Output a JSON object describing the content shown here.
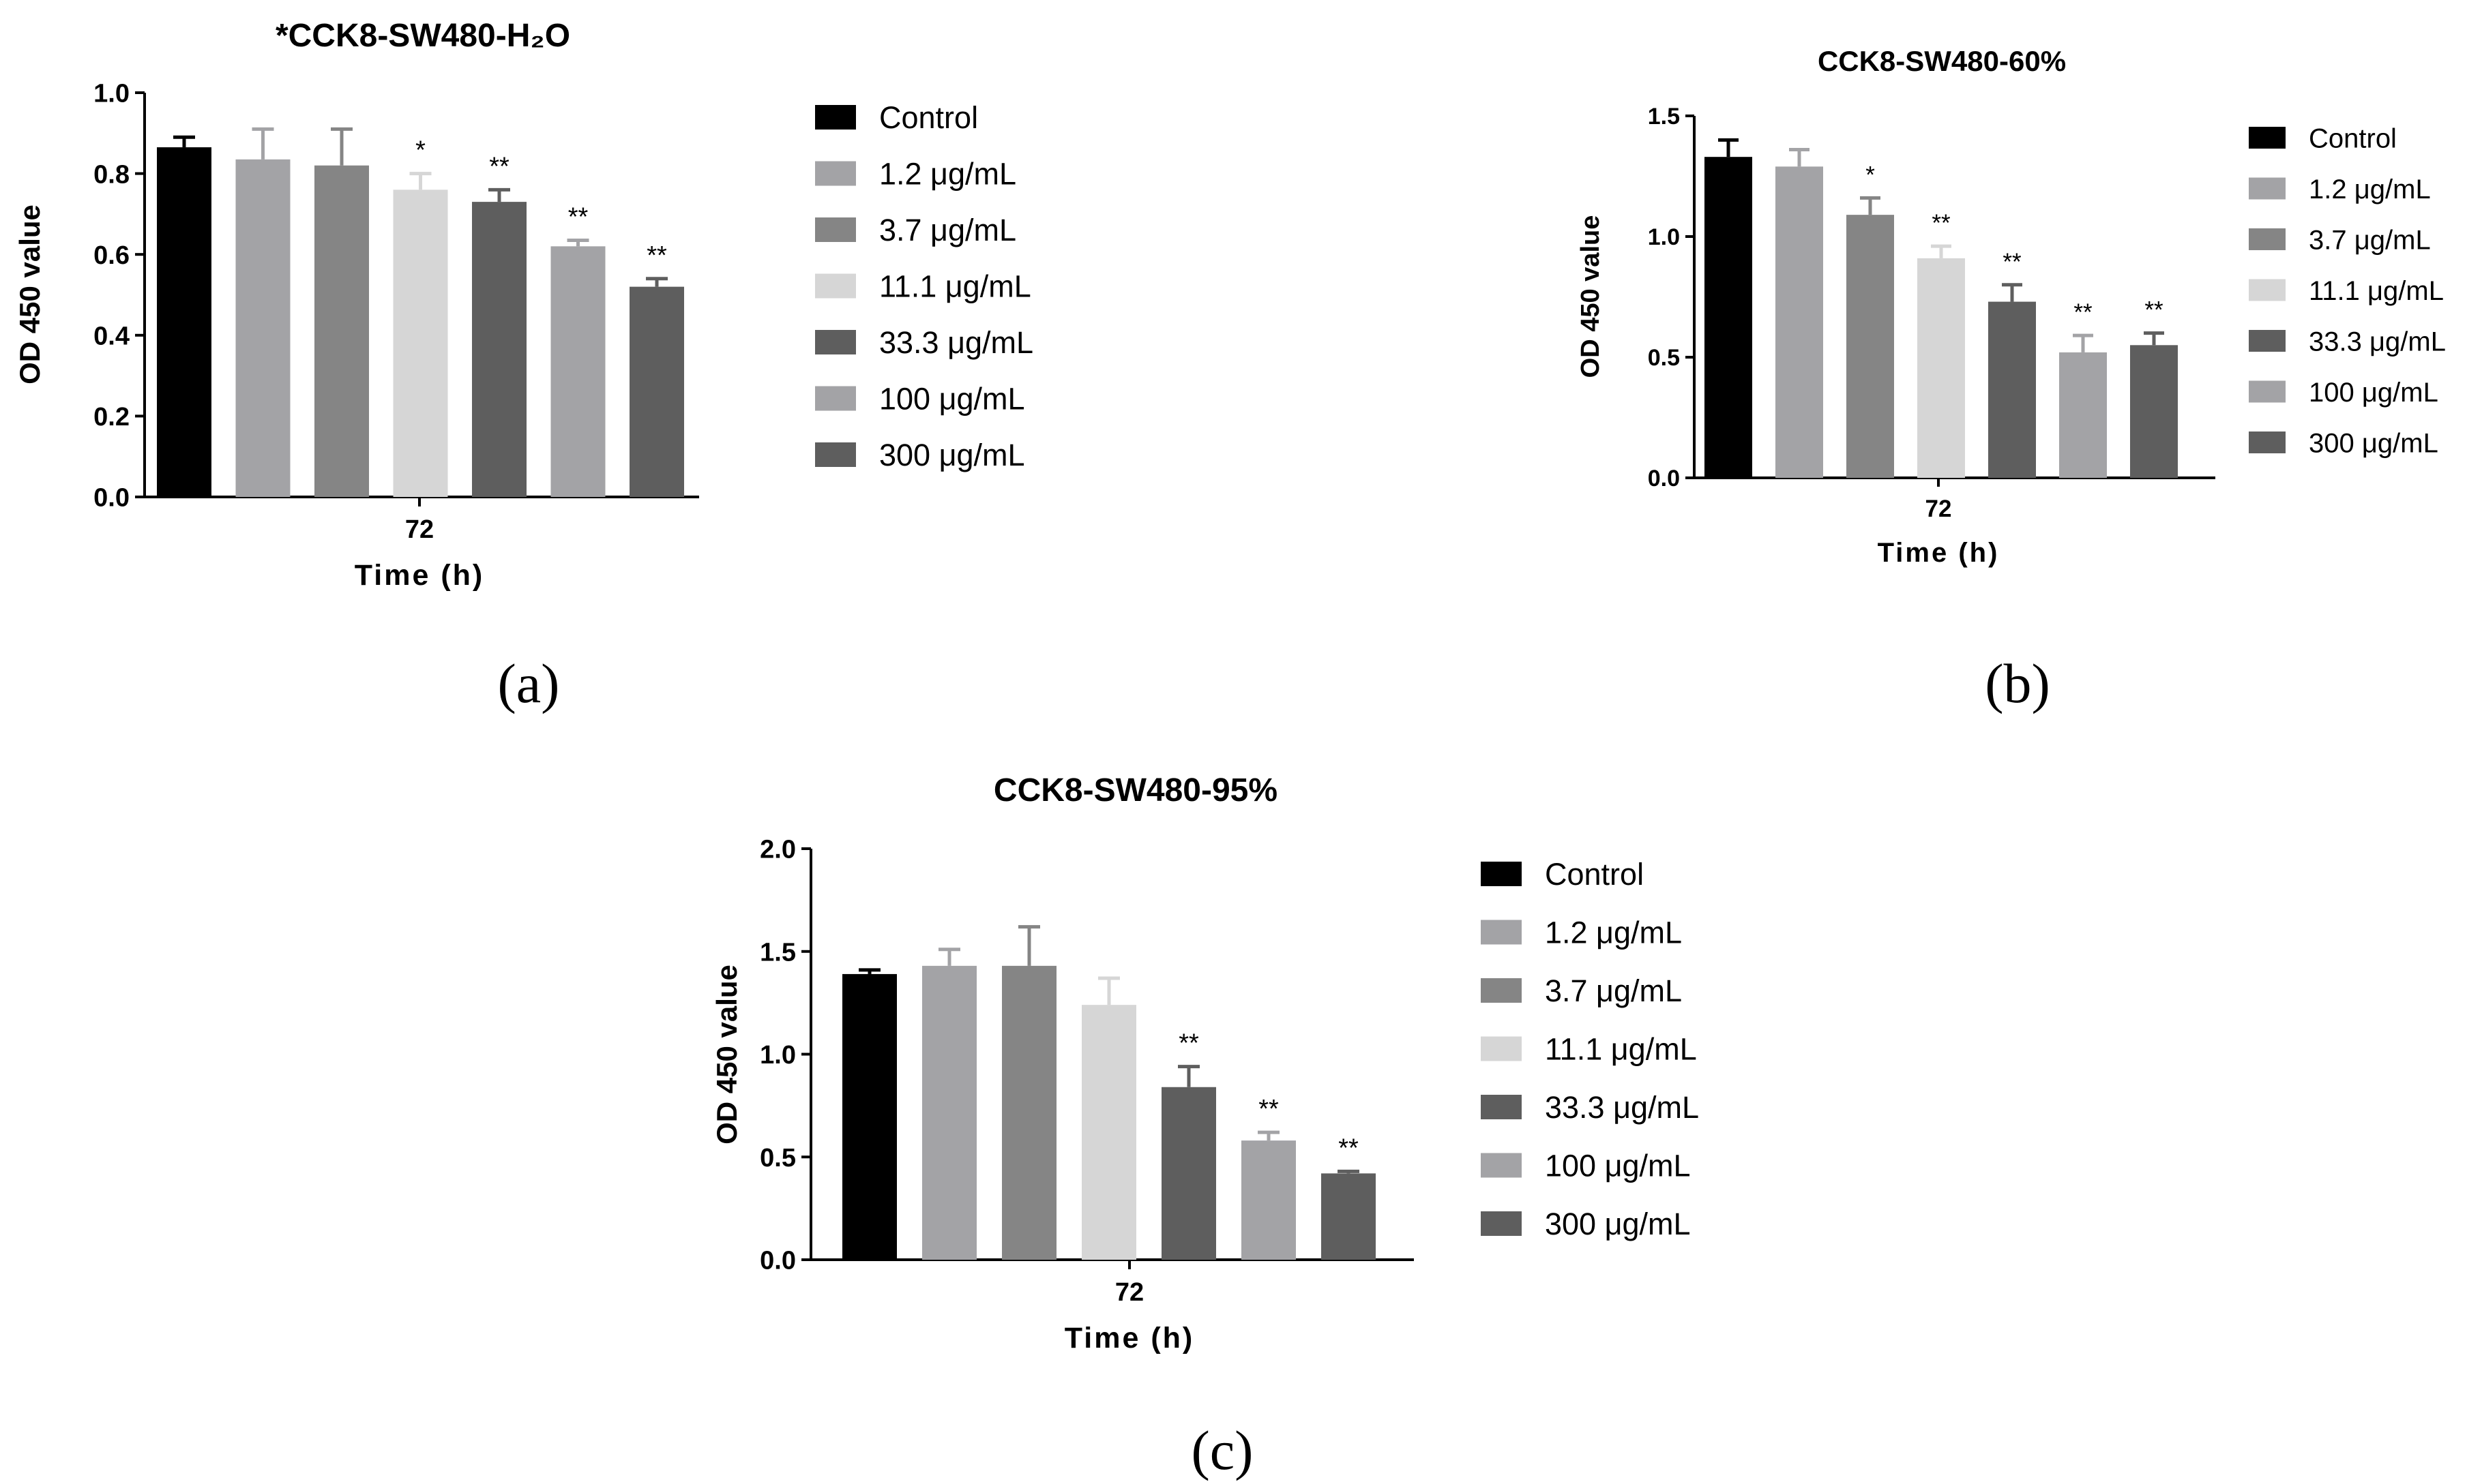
{
  "colors": [
    "#000000",
    "#a3a3a6",
    "#858585",
    "#d6d6d6",
    "#5e5e5e",
    "#a3a3a6",
    "#5e5e5e"
  ],
  "chart_data": [
    {
      "type": "bar",
      "panel": "(a)",
      "title": "*CCK8-SW480-H₂O",
      "xlabel": "Time (h)",
      "ylabel": "OD 450 value",
      "categories": [
        "72"
      ],
      "ylim": [
        0,
        1.0
      ],
      "yticks": [
        "0.0",
        "0.2",
        "0.4",
        "0.6",
        "0.8",
        "1.0"
      ],
      "ytick_values": [
        0,
        0.2,
        0.4,
        0.6,
        0.8,
        1.0
      ],
      "series": [
        {
          "name": "Control",
          "values": [
            0.865
          ],
          "error": [
            0.025
          ],
          "sig": ""
        },
        {
          "name": "1.2 μg/mL",
          "values": [
            0.835
          ],
          "error": [
            0.075
          ],
          "sig": ""
        },
        {
          "name": "3.7 μg/mL",
          "values": [
            0.82
          ],
          "error": [
            0.09
          ],
          "sig": ""
        },
        {
          "name": "11.1 μg/mL",
          "values": [
            0.76
          ],
          "error": [
            0.04
          ],
          "sig": "*"
        },
        {
          "name": "33.3 μg/mL",
          "values": [
            0.73
          ],
          "error": [
            0.03
          ],
          "sig": "**"
        },
        {
          "name": "100 μg/mL",
          "values": [
            0.62
          ],
          "error": [
            0.015
          ],
          "sig": "**"
        },
        {
          "name": "300 μg/mL",
          "values": [
            0.52
          ],
          "error": [
            0.02
          ],
          "sig": "**"
        }
      ]
    },
    {
      "type": "bar",
      "panel": "(b)",
      "title": "CCK8-SW480-60%",
      "xlabel": "Time (h)",
      "ylabel": "OD 450 value",
      "categories": [
        "72"
      ],
      "ylim": [
        0,
        1.5
      ],
      "yticks": [
        "0.0",
        "0.5",
        "1.0",
        "1.5"
      ],
      "ytick_values": [
        0,
        0.5,
        1.0,
        1.5
      ],
      "series": [
        {
          "name": "Control",
          "values": [
            1.33
          ],
          "error": [
            0.07
          ],
          "sig": ""
        },
        {
          "name": "1.2 μg/mL",
          "values": [
            1.29
          ],
          "error": [
            0.07
          ],
          "sig": ""
        },
        {
          "name": "3.7 μg/mL",
          "values": [
            1.09
          ],
          "error": [
            0.07
          ],
          "sig": "*"
        },
        {
          "name": "11.1 μg/mL",
          "values": [
            0.91
          ],
          "error": [
            0.05
          ],
          "sig": "**"
        },
        {
          "name": "33.3 μg/mL",
          "values": [
            0.73
          ],
          "error": [
            0.07
          ],
          "sig": "**"
        },
        {
          "name": "100 μg/mL",
          "values": [
            0.52
          ],
          "error": [
            0.07
          ],
          "sig": "**"
        },
        {
          "name": "300 μg/mL",
          "values": [
            0.55
          ],
          "error": [
            0.05
          ],
          "sig": "**"
        }
      ]
    },
    {
      "type": "bar",
      "panel": "(c)",
      "title": "CCK8-SW480-95%",
      "xlabel": "Time (h)",
      "ylabel": "OD 450 value",
      "categories": [
        "72"
      ],
      "ylim": [
        0,
        2.0
      ],
      "yticks": [
        "0.0",
        "0.5",
        "1.0",
        "1.5",
        "2.0"
      ],
      "ytick_values": [
        0,
        0.5,
        1.0,
        1.5,
        2.0
      ],
      "series": [
        {
          "name": "Control",
          "values": [
            1.39
          ],
          "error": [
            0.02
          ],
          "sig": ""
        },
        {
          "name": "1.2 μg/mL",
          "values": [
            1.43
          ],
          "error": [
            0.08
          ],
          "sig": ""
        },
        {
          "name": "3.7 μg/mL",
          "values": [
            1.43
          ],
          "error": [
            0.19
          ],
          "sig": ""
        },
        {
          "name": "11.1 μg/mL",
          "values": [
            1.24
          ],
          "error": [
            0.13
          ],
          "sig": ""
        },
        {
          "name": "33.3 μg/mL",
          "values": [
            0.84
          ],
          "error": [
            0.1
          ],
          "sig": "**"
        },
        {
          "name": "100 μg/mL",
          "values": [
            0.58
          ],
          "error": [
            0.04
          ],
          "sig": "**"
        },
        {
          "name": "300 μg/mL",
          "values": [
            0.42
          ],
          "error": [
            0.01
          ],
          "sig": "**"
        }
      ]
    }
  ]
}
